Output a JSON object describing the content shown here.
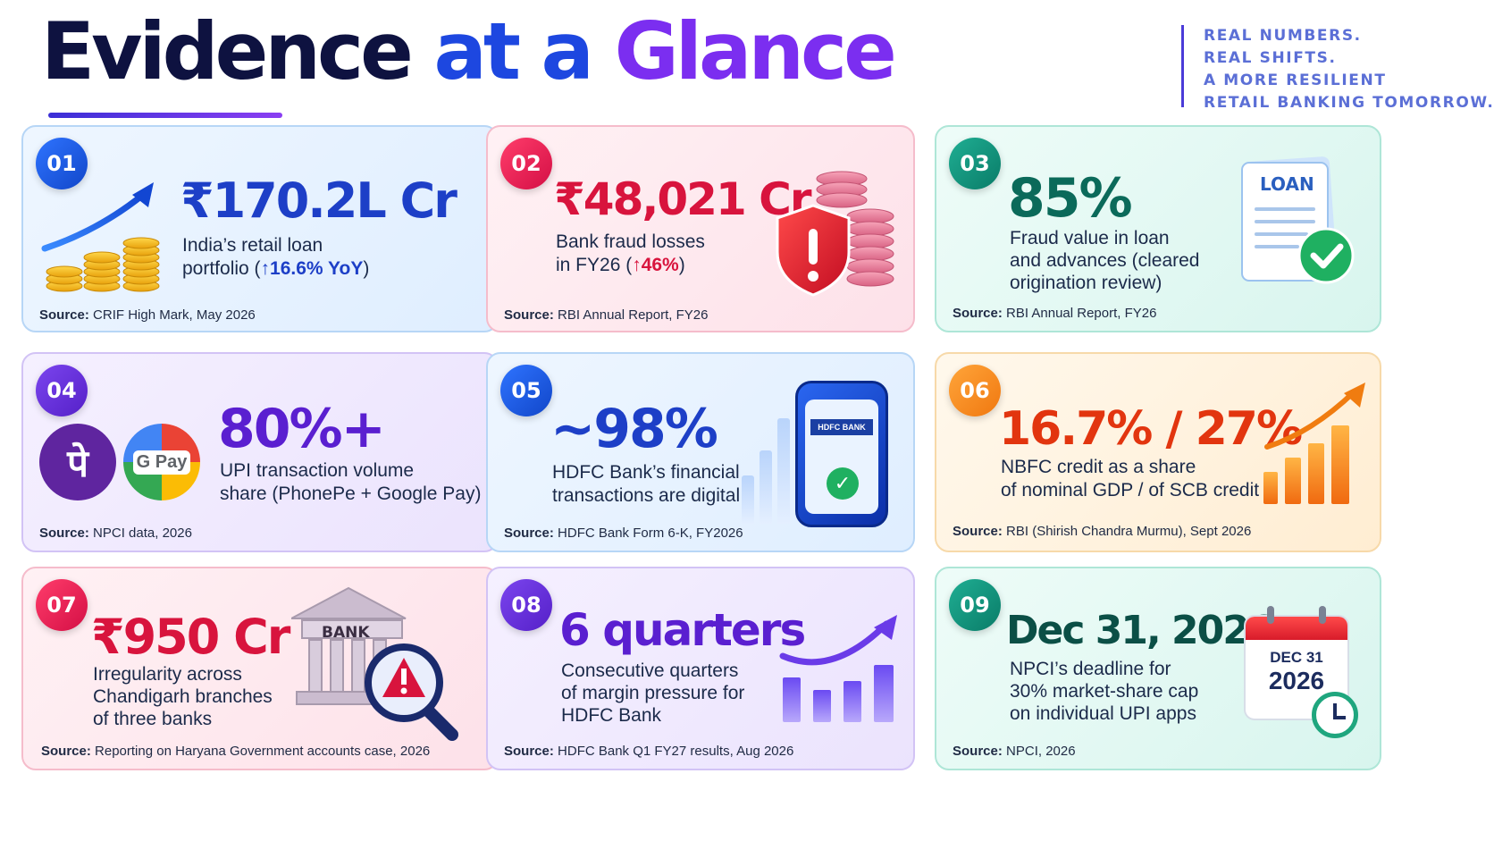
{
  "header": {
    "title_part1": "Evidence",
    "title_part2": "at a",
    "title_part3": "Glance",
    "tagline": [
      "REAL NUMBERS.",
      "REAL SHIFTS.",
      "A MORE RESILIENT",
      "RETAIL BANKING TOMORROW."
    ]
  },
  "source_label": "Source:",
  "colors": {
    "navy": "#0e1240",
    "blue": "#1d47e0",
    "purple": "#7b2ef0",
    "red": "#d8143d",
    "teal": "#0b6a5a",
    "orange": "#e2350f"
  },
  "cards": [
    {
      "number": "01",
      "value": "₹170.2L Cr",
      "desc_line1": "India’s retail loan",
      "desc_line2_prefix": "portfolio (",
      "desc_change": "↑16.6% YoY",
      "desc_line2_suffix": ")",
      "source": "CRIF High Mark, May 2026",
      "icon": "coins-growth-icon"
    },
    {
      "number": "02",
      "value": "₹48,021 Cr",
      "desc_line1": "Bank fraud losses",
      "desc_line2_prefix": "in FY26 (",
      "desc_change": "↑46%",
      "desc_line2_suffix": ")",
      "source": "RBI Annual Report, FY26",
      "icon": "shield-alert-coins-icon"
    },
    {
      "number": "03",
      "value": "85%",
      "desc_lines": [
        "Fraud value in loan",
        "and advances (cleared",
        "origination review)"
      ],
      "icon_text": "LOAN",
      "source": "RBI Annual Report, FY26",
      "icon": "loan-document-check-icon"
    },
    {
      "number": "04",
      "value": "80%+",
      "desc_lines": [
        "UPI transaction volume",
        "share (PhonePe + Google Pay)"
      ],
      "phonepe_glyph": "पे",
      "gpay_text": "G Pay",
      "source": "NPCI data, 2026",
      "icon": "phonepe-gpay-logos-icon"
    },
    {
      "number": "05",
      "value": "~98%",
      "desc_lines": [
        "HDFC Bank’s financial",
        "transactions are digital"
      ],
      "phone_label": "HDFC BANK",
      "source": "HDFC Bank Form 6-K, FY2026",
      "icon": "phone-hdfc-check-icon"
    },
    {
      "number": "06",
      "value": "16.7% / 27%",
      "desc_lines": [
        "NBFC credit as a share",
        "of nominal GDP / of SCB credit"
      ],
      "source": "RBI (Shirish Chandra Murmu), Sept 2026",
      "icon": "orange-growth-bars-icon"
    },
    {
      "number": "07",
      "value": "₹950 Cr",
      "desc_lines": [
        "Irregularity across",
        "Chandigarh branches",
        "of three banks"
      ],
      "bank_label": "BANK",
      "source": "Reporting on Haryana Government accounts case, 2026",
      "icon": "bank-magnifier-alert-icon"
    },
    {
      "number": "08",
      "value": "6 quarters",
      "desc_lines": [
        "Consecutive quarters",
        "of margin pressure for",
        "HDFC Bank"
      ],
      "source": "HDFC Bank Q1 FY27 results, Aug 2026",
      "icon": "purple-bars-arrow-icon"
    },
    {
      "number": "09",
      "value": "Dec 31, 2026",
      "desc_lines": [
        "NPCI’s deadline for",
        "30% market-share cap",
        "on individual UPI apps"
      ],
      "cal_month": "DEC 31",
      "cal_year": "2026",
      "source": "NPCI, 2026",
      "icon": "calendar-clock-icon"
    }
  ]
}
